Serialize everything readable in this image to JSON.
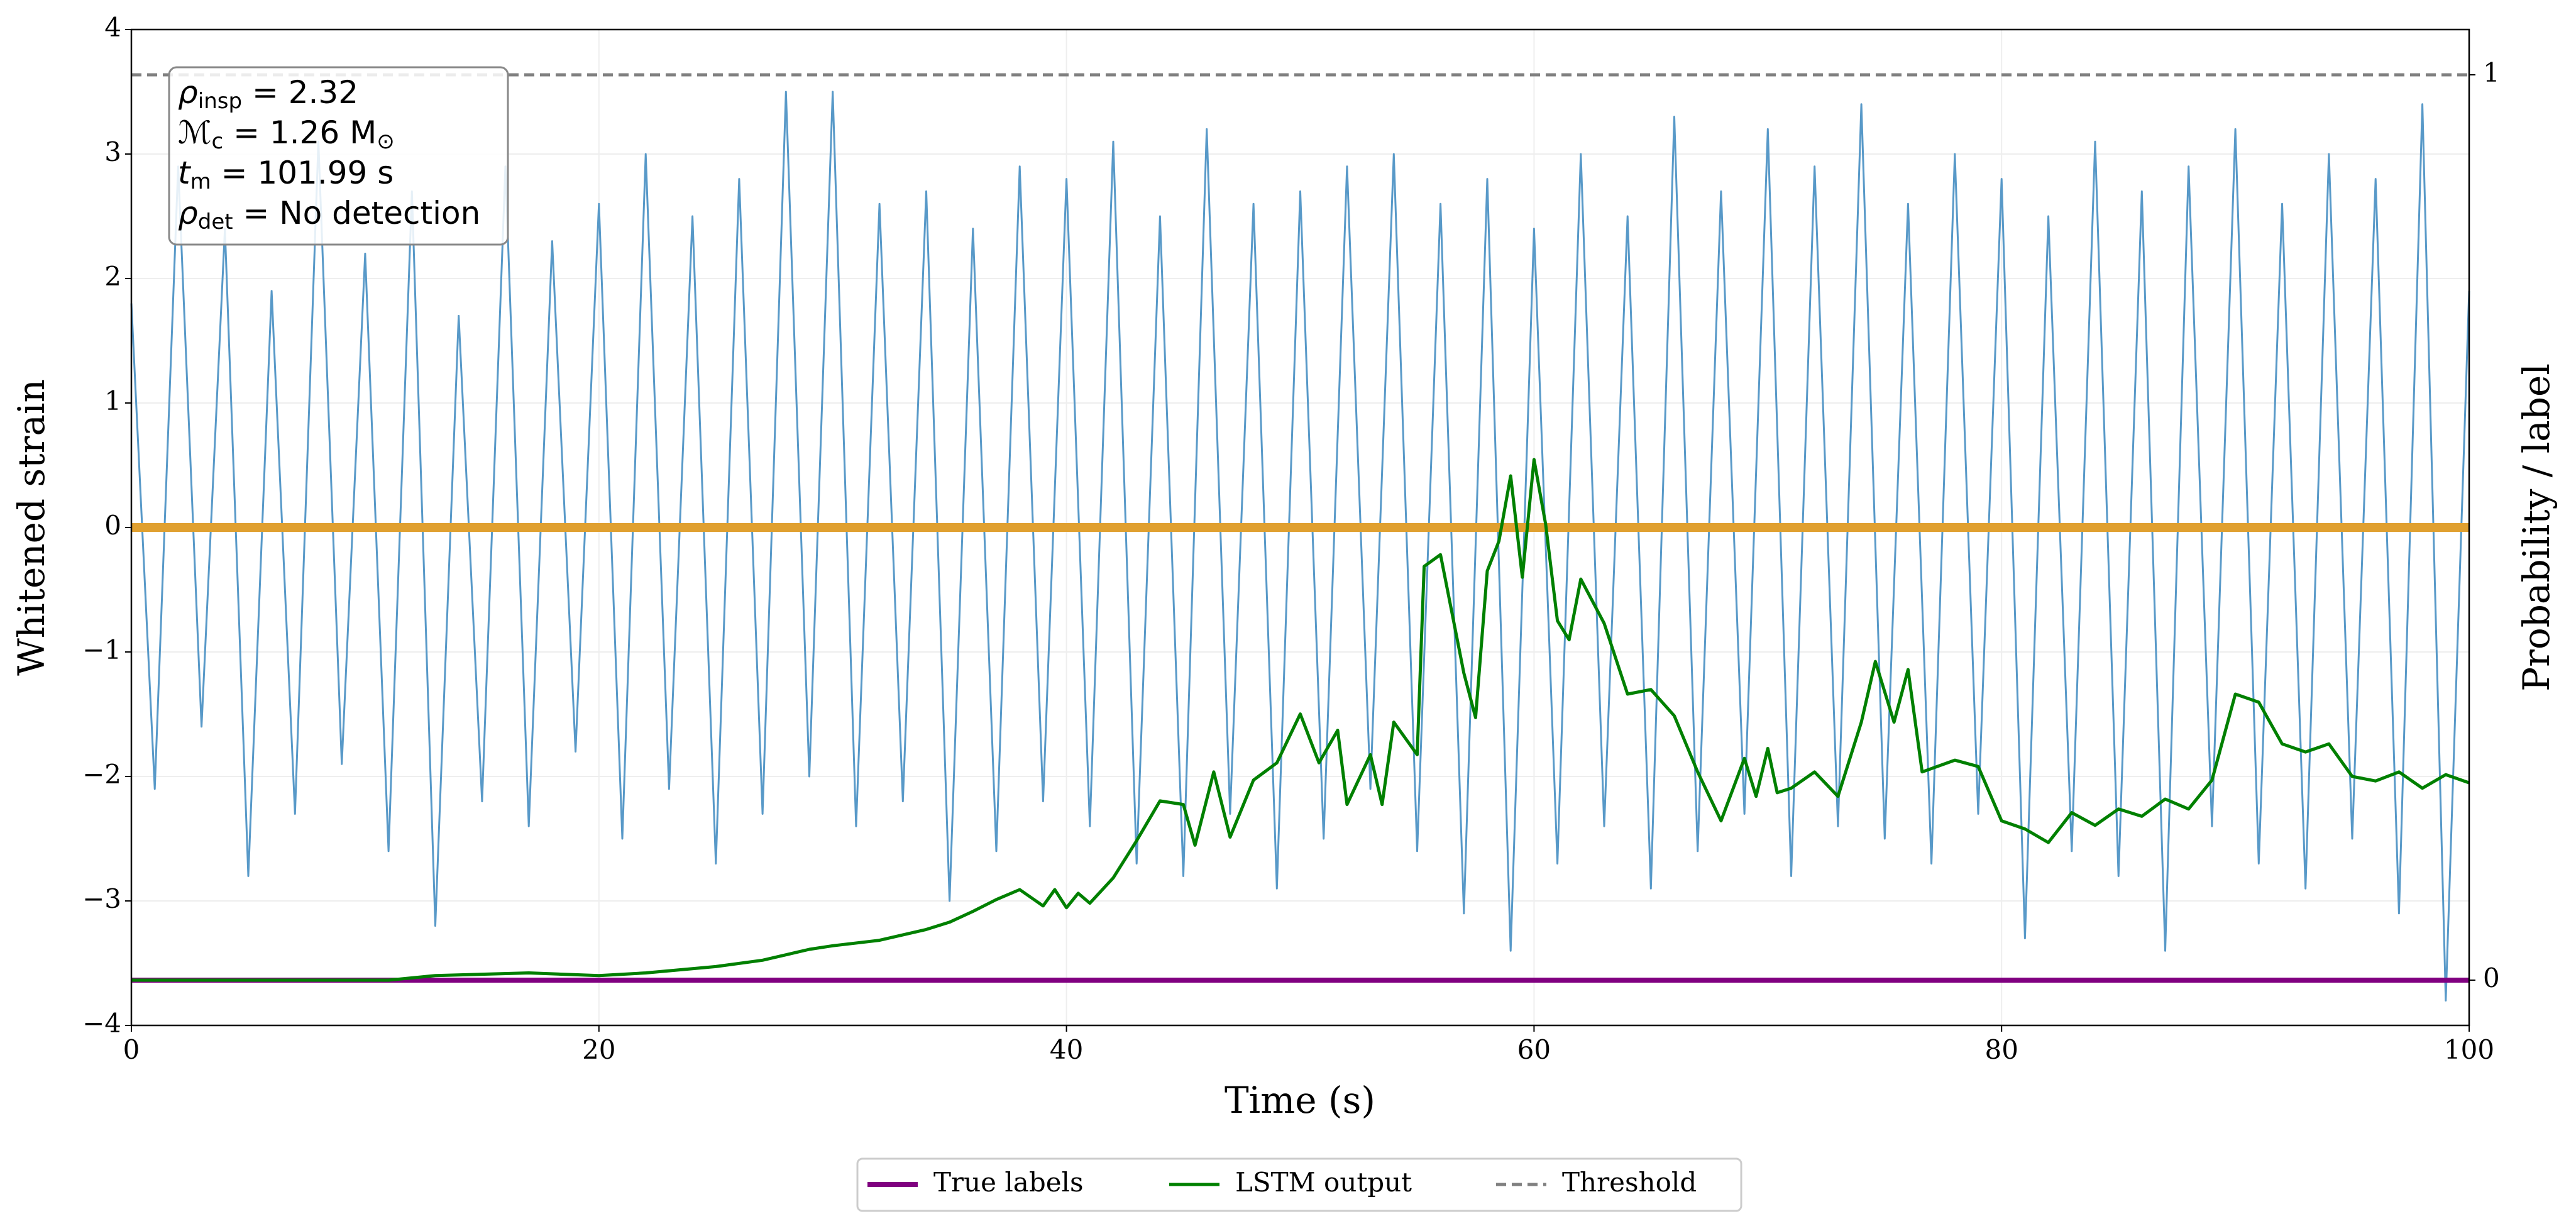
{
  "chart_data": {
    "type": "line",
    "xlabel": "Time (s)",
    "ylabel": "Whitened strain",
    "y2label": "Probability / label",
    "xlim": [
      0,
      100
    ],
    "ylim": [
      -4,
      4
    ],
    "y2lim": [
      -0.05,
      1.05
    ],
    "xticks": [
      0,
      20,
      40,
      60,
      80,
      100
    ],
    "yticks": [
      {
        "value": -4,
        "label": "−4"
      },
      {
        "value": -3,
        "label": "−3"
      },
      {
        "value": -2,
        "label": "−2"
      },
      {
        "value": -1,
        "label": "−1"
      },
      0,
      1,
      2,
      3,
      4
    ],
    "y2ticks": [
      0,
      1
    ],
    "grid": true,
    "legend": "lower center",
    "strain": {
      "color": "#4f93c5",
      "x": [
        0,
        1,
        2,
        3,
        4,
        5,
        6,
        7,
        8,
        9,
        10,
        11,
        12,
        13,
        14,
        15,
        16,
        17,
        18,
        19,
        20,
        21,
        22,
        23,
        24,
        25,
        26,
        27,
        28,
        29,
        30,
        31,
        32,
        33,
        34,
        35,
        36,
        37,
        38,
        39,
        40,
        41,
        42,
        43,
        44,
        45,
        46,
        47,
        48,
        49,
        50,
        51,
        52,
        53,
        54,
        55,
        56,
        57,
        58,
        59,
        60,
        61,
        62,
        63,
        64,
        65,
        66,
        67,
        68,
        69,
        70,
        71,
        72,
        73,
        74,
        75,
        76,
        77,
        78,
        79,
        80,
        81,
        82,
        83,
        84,
        85,
        86,
        87,
        88,
        89,
        90,
        91,
        92,
        93,
        94,
        95,
        96,
        97,
        98,
        99,
        100
      ],
      "values": [
        1.8,
        -2.1,
        2.9,
        -1.6,
        2.4,
        -2.8,
        1.9,
        -2.3,
        3.1,
        -1.9,
        2.2,
        -2.6,
        2.7,
        -3.2,
        1.7,
        -2.2,
        2.9,
        -2.4,
        2.3,
        -1.8,
        2.6,
        -2.5,
        3.0,
        -2.1,
        2.5,
        -2.7,
        2.8,
        -2.3,
        3.5,
        -2.0,
        3.5,
        -2.4,
        2.6,
        -2.2,
        2.7,
        -3.0,
        2.4,
        -2.6,
        2.9,
        -2.2,
        2.8,
        -2.4,
        3.1,
        -2.7,
        2.5,
        -2.8,
        3.2,
        -2.3,
        2.6,
        -2.9,
        2.7,
        -2.5,
        2.9,
        -2.1,
        3.0,
        -2.6,
        2.6,
        -3.1,
        2.8,
        -3.4,
        2.4,
        -2.7,
        3.0,
        -2.4,
        2.5,
        -2.9,
        3.3,
        -2.6,
        2.7,
        -2.3,
        3.2,
        -2.8,
        2.9,
        -2.4,
        3.4,
        -2.5,
        2.6,
        -2.7,
        3.0,
        -2.3,
        2.8,
        -3.3,
        2.5,
        -2.6,
        3.1,
        -2.8,
        2.7,
        -3.4,
        2.9,
        -2.4,
        3.2,
        -2.7,
        2.6,
        -2.9,
        3.0,
        -2.5,
        2.8,
        -3.1,
        3.4,
        -3.8,
        1.9
      ]
    },
    "template": {
      "color": "#e0a030",
      "x": [
        0,
        20,
        40,
        60,
        80,
        100
      ],
      "values": [
        0,
        0,
        0,
        0,
        0,
        0
      ]
    },
    "series": [
      {
        "name": "True labels",
        "color": "#800080",
        "axis": "y2",
        "x": [
          0,
          100
        ],
        "values": [
          0,
          0
        ]
      },
      {
        "name": "LSTM output",
        "color": "#008000",
        "axis": "y2",
        "x": [
          0,
          11,
          13,
          17,
          20,
          22,
          25,
          27,
          28,
          29,
          30,
          32,
          34,
          35,
          36,
          37,
          38,
          39,
          39.5,
          40,
          40.5,
          41,
          42,
          43,
          44,
          45,
          45.5,
          46.3,
          47,
          48,
          49,
          50,
          50.8,
          51.6,
          52,
          53,
          53.5,
          54,
          55,
          55.3,
          56,
          57,
          57.5,
          58,
          58.5,
          59,
          59.5,
          60,
          60.5,
          61,
          61.5,
          62,
          63,
          64,
          65,
          66,
          67,
          68,
          69,
          69.5,
          70,
          70.4,
          71,
          72,
          73,
          74,
          74.6,
          75.4,
          76,
          76.6,
          78,
          79,
          80,
          81,
          82,
          83,
          84,
          85,
          86,
          87,
          88,
          89,
          90,
          91,
          92,
          93,
          94,
          95,
          96,
          97,
          98,
          99,
          100
        ],
        "values": [
          0,
          0,
          0.005,
          0.008,
          0.005,
          0.008,
          0.015,
          0.022,
          0.028,
          0.034,
          0.038,
          0.044,
          0.056,
          0.064,
          0.076,
          0.089,
          0.1,
          0.082,
          0.1,
          0.08,
          0.096,
          0.085,
          0.113,
          0.154,
          0.198,
          0.194,
          0.149,
          0.23,
          0.158,
          0.221,
          0.24,
          0.294,
          0.24,
          0.276,
          0.194,
          0.249,
          0.194,
          0.285,
          0.249,
          0.457,
          0.47,
          0.339,
          0.29,
          0.452,
          0.485,
          0.557,
          0.445,
          0.575,
          0.503,
          0.397,
          0.376,
          0.443,
          0.394,
          0.316,
          0.321,
          0.292,
          0.23,
          0.176,
          0.245,
          0.203,
          0.256,
          0.207,
          0.212,
          0.23,
          0.203,
          0.285,
          0.352,
          0.285,
          0.343,
          0.23,
          0.243,
          0.236,
          0.176,
          0.167,
          0.152,
          0.185,
          0.171,
          0.189,
          0.181,
          0.2,
          0.189,
          0.221,
          0.316,
          0.307,
          0.261,
          0.252,
          0.261,
          0.225,
          0.22,
          0.23,
          0.212,
          0.227,
          0.218
        ]
      },
      {
        "name": "Threshold",
        "color": "#808080",
        "axis": "y2",
        "dash": true,
        "x": [
          0,
          100
        ],
        "values": [
          1,
          1
        ]
      }
    ],
    "annotation": [
      {
        "symbol": "ρ",
        "sub": "insp",
        "value": " = 2.32"
      },
      {
        "symbol": "ℳ",
        "sub": "c",
        "value": " = 1.26 M",
        "unit_sub": "⊙"
      },
      {
        "symbol": "t",
        "sub": "m",
        "value": " = 101.99 s"
      },
      {
        "symbol": "ρ",
        "sub": "det",
        "value": " = No detection"
      }
    ]
  }
}
